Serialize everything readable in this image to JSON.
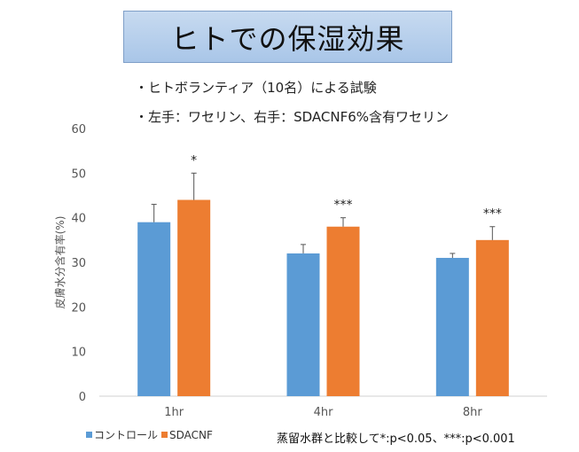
{
  "slide": {
    "title": "ヒトでの保湿効果",
    "notes": [
      "・ヒトボランティア（10名）による試験",
      "・左手：ワセリン、右手：SDACNF6%含有ワセリン"
    ],
    "footnote": "蒸留水群と比較して*:p<0.05、***:p<0.001"
  },
  "chart_data": {
    "type": "bar",
    "categories": [
      "1hr",
      "4hr",
      "8hr"
    ],
    "series": [
      {
        "name": "コントロール",
        "color": "#5b9bd5",
        "values": [
          39,
          32,
          31
        ],
        "error": [
          4,
          2,
          1
        ]
      },
      {
        "name": "SDACNF",
        "color": "#ed7d31",
        "values": [
          44,
          38,
          35
        ],
        "error": [
          6,
          2,
          3
        ]
      }
    ],
    "significance": [
      "*",
      "***",
      "***"
    ],
    "ylabel": "皮膚水分含有率(%)",
    "ylim": [
      0,
      60
    ],
    "yticks": [
      0,
      10,
      20,
      30,
      40,
      50,
      60
    ],
    "grid": false,
    "legend": "bottom-left"
  }
}
